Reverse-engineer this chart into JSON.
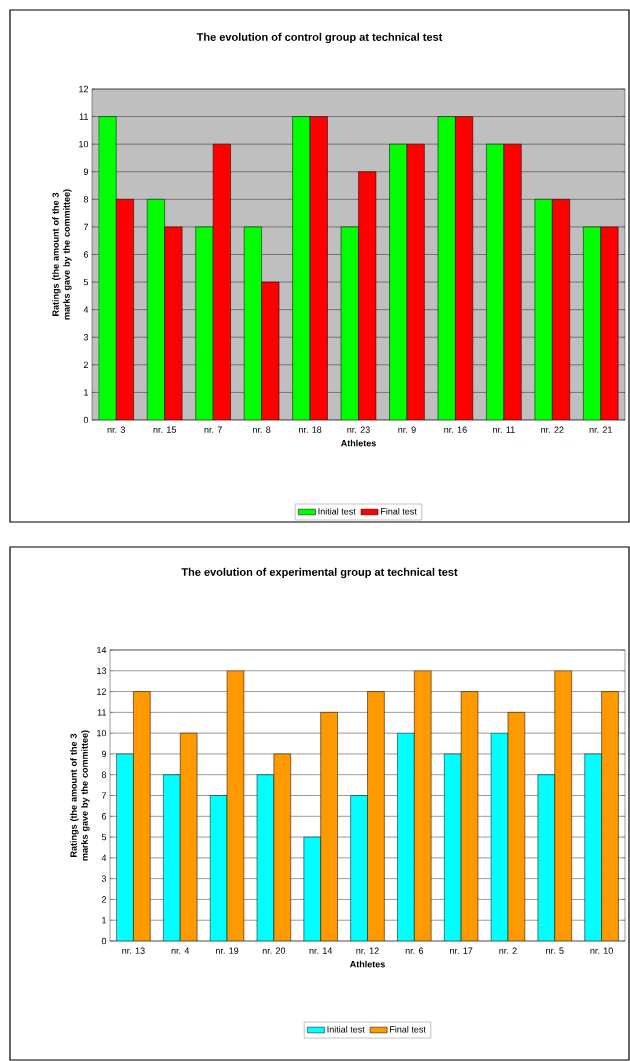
{
  "chart_data": [
    {
      "type": "bar",
      "title": "The evolution of control group at technical test",
      "xlabel": "Athletes",
      "ylabel": "Ratings (the amount of the 3 marks gave by the committee)",
      "categories": [
        "nr. 3",
        "nr. 15",
        "nr. 7",
        "nr. 8",
        "nr. 18",
        "nr. 23",
        "nr. 9",
        "nr. 16",
        "nr. 11",
        "nr. 22",
        "nr. 21"
      ],
      "series": [
        {
          "name": "Initial test",
          "color": "#00ff00",
          "values": [
            11,
            8,
            7,
            7,
            11,
            7,
            10,
            11,
            10,
            8,
            7
          ]
        },
        {
          "name": "Final test",
          "color": "#ff0000",
          "values": [
            8,
            7,
            10,
            5,
            11,
            9,
            10,
            11,
            10,
            8,
            7
          ]
        }
      ],
      "ylim": [
        0,
        12
      ],
      "yticks": [
        0,
        1,
        2,
        3,
        4,
        5,
        6,
        7,
        8,
        9,
        10,
        11,
        12
      ],
      "grid": "y",
      "legend": "bottom"
    },
    {
      "type": "bar",
      "title": "The evolution of experimental group at technical test",
      "xlabel": "Athletes",
      "ylabel": "Ratings (the amount of the 3 marks gave by the committee)",
      "categories": [
        "nr. 13",
        "nr. 4",
        "nr. 19",
        "nr. 20",
        "nr. 14",
        "nr. 12",
        "nr. 6",
        "nr. 17",
        "nr. 2",
        "nr. 5",
        "nr. 10"
      ],
      "series": [
        {
          "name": "Initial test",
          "color": "#00ffff",
          "values": [
            9,
            8,
            7,
            8,
            5,
            7,
            10,
            9,
            10,
            8,
            9
          ]
        },
        {
          "name": "Final test",
          "color": "#ff9900",
          "values": [
            12,
            10,
            13,
            9,
            11,
            12,
            13,
            12,
            11,
            13,
            12
          ]
        }
      ],
      "ylim": [
        0,
        14
      ],
      "yticks": [
        0,
        1,
        2,
        3,
        4,
        5,
        6,
        7,
        8,
        9,
        10,
        11,
        12,
        13,
        14
      ],
      "grid": "y",
      "legend": "bottom"
    }
  ]
}
